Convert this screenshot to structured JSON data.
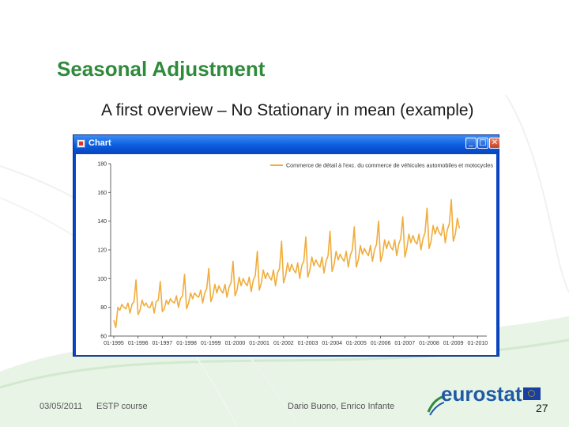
{
  "slide": {
    "title": "Seasonal Adjustment",
    "subtitle": "A first overview – No Stationary in mean (example)",
    "footer_date": "03/05/2011",
    "footer_course": "ESTP course",
    "footer_authors": "Dario Buono, Enrico Infante",
    "logo_text": "eurostat",
    "page_number": "27",
    "accent_color": "#2f8a3b"
  },
  "window": {
    "title": "Chart",
    "minimize_glyph": "_",
    "maximize_glyph": "□",
    "close_glyph": "✕"
  },
  "chart_data": {
    "type": "line",
    "series": [
      {
        "name": "Commerce de détail à l'exc. du commerce de véhicules automobiles et motocycles",
        "color": "#f0ad3c",
        "values": [
          71,
          66,
          80,
          78,
          82,
          80,
          79,
          83,
          76,
          82,
          84,
          99,
          75,
          78,
          85,
          81,
          83,
          80,
          80,
          84,
          76,
          84,
          85,
          98,
          77,
          79,
          85,
          82,
          86,
          84,
          83,
          88,
          80,
          86,
          88,
          103,
          79,
          83,
          90,
          86,
          90,
          88,
          87,
          92,
          83,
          90,
          93,
          107,
          84,
          88,
          96,
          90,
          95,
          92,
          90,
          96,
          87,
          94,
          97,
          112,
          88,
          92,
          101,
          95,
          100,
          97,
          95,
          101,
          91,
          99,
          102,
          119,
          92,
          97,
          106,
          100,
          104,
          101,
          99,
          106,
          95,
          104,
          107,
          126,
          97,
          102,
          111,
          105,
          110,
          106,
          104,
          111,
          100,
          109,
          112,
          129,
          101,
          106,
          115,
          109,
          113,
          110,
          108,
          115,
          104,
          112,
          116,
          133,
          105,
          110,
          119,
          113,
          117,
          114,
          112,
          119,
          108,
          116,
          120,
          136,
          108,
          113,
          123,
          117,
          121,
          118,
          116,
          123,
          112,
          120,
          124,
          140,
          112,
          117,
          127,
          121,
          126,
          122,
          120,
          127,
          116,
          124,
          128,
          143,
          115,
          121,
          131,
          125,
          130,
          126,
          124,
          131,
          120,
          128,
          132,
          149,
          121,
          126,
          137,
          131,
          136,
          132,
          130,
          138,
          125,
          134,
          138,
          155,
          126,
          131,
          142,
          135
        ]
      }
    ],
    "x_tick_labels": [
      "01-1995",
      "01-1996",
      "01-1997",
      "01-1998",
      "01-1999",
      "01-2000",
      "01-2001",
      "01-2002",
      "01-2003",
      "01-2004",
      "01-2005",
      "01-2006",
      "01-2007",
      "01-2008",
      "01-2009",
      "01-2010"
    ],
    "y_tick_labels": [
      "60",
      "80",
      "100",
      "120",
      "140",
      "160",
      "180"
    ],
    "ylim": [
      60,
      180
    ],
    "grid": false,
    "legend_position": "top-right"
  }
}
